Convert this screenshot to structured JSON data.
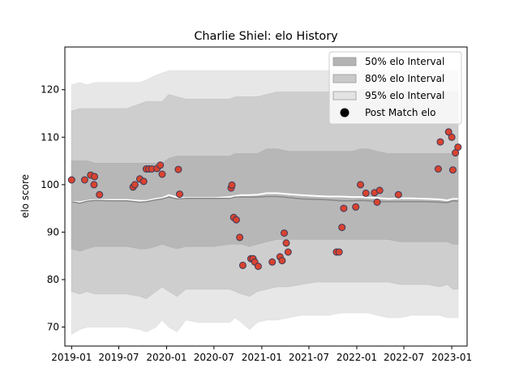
{
  "chart_data": {
    "type": "scatter",
    "title": "Charlie Shiel: elo History",
    "xlabel": "",
    "ylabel": "elo score",
    "xlim": [
      "2018-12-06",
      "2023-03-01"
    ],
    "ylim": [
      66,
      129
    ],
    "x_ticks": [
      "2019-01",
      "2019-07",
      "2020-01",
      "2020-07",
      "2021-01",
      "2021-07",
      "2022-01",
      "2022-07",
      "2023-01"
    ],
    "y_ticks": [
      70,
      80,
      90,
      100,
      110,
      120
    ],
    "grid": false,
    "legend_position": "top-right",
    "colors": {
      "band50": "#b3b3b3",
      "band80": "#c9c9c9",
      "band95": "#e3e3e3",
      "mean_line": "#888888",
      "median_line": "#ffffff",
      "point_fill": "#d9432f",
      "point_edge": "#3a3a5a"
    },
    "legend": [
      {
        "label": "50% elo Interval",
        "kind": "band50"
      },
      {
        "label": "80% elo Interval",
        "kind": "band80"
      },
      {
        "label": "95% elo Interval",
        "kind": "band95"
      },
      {
        "label": "Post Match elo",
        "kind": "point"
      }
    ],
    "band_x": [
      "2019-01-01",
      "2019-02-01",
      "2019-03-01",
      "2019-04-01",
      "2019-06-01",
      "2019-08-01",
      "2019-09-20",
      "2019-10-15",
      "2019-11-20",
      "2019-12-15",
      "2020-01-10",
      "2020-02-10",
      "2020-03-15",
      "2020-05-01",
      "2020-07-01",
      "2020-09-01",
      "2020-09-20",
      "2020-10-15",
      "2020-11-15",
      "2020-12-15",
      "2021-01-20",
      "2021-03-01",
      "2021-04-15",
      "2021-06-01",
      "2021-08-01",
      "2021-09-15",
      "2021-11-01",
      "2021-12-15",
      "2022-01-15",
      "2022-02-15",
      "2022-03-20",
      "2022-05-01",
      "2022-06-15",
      "2022-08-01",
      "2022-10-01",
      "2022-11-15",
      "2022-12-15",
      "2023-01-05",
      "2023-01-25"
    ],
    "band95_upper": [
      121,
      121.5,
      121,
      121.5,
      121.5,
      121.5,
      121.5,
      122,
      123,
      123.5,
      124,
      124,
      124,
      124,
      124,
      124,
      124,
      124,
      124,
      124,
      124,
      124,
      124,
      124,
      124,
      124,
      124,
      124,
      124,
      124,
      124,
      124,
      124,
      124,
      124,
      124,
      124,
      124,
      124
    ],
    "band95_lower": [
      68.5,
      69.5,
      70,
      70,
      70,
      70,
      69.5,
      69,
      70,
      71.5,
      70,
      69,
      71.5,
      71,
      71,
      71,
      72,
      71,
      69.5,
      71,
      71.5,
      71.5,
      72,
      72.5,
      72.5,
      72.5,
      73,
      73,
      73,
      73,
      72.5,
      72,
      72,
      72.5,
      72.5,
      72.5,
      72,
      72,
      72
    ],
    "band80_upper": [
      115.5,
      116,
      116,
      116,
      116,
      116,
      117,
      117.5,
      117.5,
      117.5,
      119,
      118.5,
      118,
      118,
      118,
      118,
      118.5,
      118.5,
      118.5,
      118.5,
      119,
      119.5,
      119.5,
      119.5,
      119.5,
      119.5,
      119.5,
      119.5,
      120,
      120,
      120,
      120,
      119.5,
      119.5,
      119.5,
      119.5,
      119.5,
      119.5,
      119.5
    ],
    "band80_lower": [
      77.5,
      77,
      77.5,
      77,
      77,
      77,
      76.5,
      76,
      77.5,
      78.5,
      77.5,
      76.5,
      78,
      78,
      78,
      78,
      77.5,
      77,
      76.5,
      77.5,
      78,
      78.5,
      78.5,
      79,
      79.5,
      79.5,
      79.5,
      79.5,
      79.5,
      79.5,
      79.5,
      79.5,
      79,
      79,
      79,
      78.5,
      79,
      78,
      78
    ],
    "band50_upper": [
      105,
      105,
      105,
      104.5,
      104.5,
      104.5,
      104.5,
      104.5,
      104.5,
      104.5,
      105.5,
      106,
      106,
      106,
      106,
      106,
      106.5,
      106.5,
      106.5,
      106.5,
      107.5,
      107.5,
      107,
      107,
      107,
      107,
      107,
      107,
      107.5,
      107.5,
      107,
      106.5,
      106.5,
      106.5,
      106.5,
      106.5,
      106.5,
      106.5,
      106.5
    ],
    "band50_lower": [
      86.5,
      86,
      86.5,
      87,
      87,
      87,
      86.5,
      86.5,
      87,
      87.5,
      87,
      86.5,
      87,
      87,
      87,
      87.5,
      87.5,
      87.5,
      87,
      87.5,
      88,
      88.5,
      88.5,
      88.5,
      88.5,
      88.5,
      88.5,
      88.5,
      88.5,
      88.5,
      88.5,
      88.5,
      88,
      88,
      88,
      88,
      88,
      87.5,
      87.5
    ],
    "mean_line": [
      96.4,
      96.1,
      96.5,
      96.7,
      96.6,
      96.6,
      96.3,
      96.4,
      96.8,
      97.0,
      97.4,
      97.0,
      97.1,
      97.1,
      97.1,
      97.1,
      97.4,
      97.4,
      97.4,
      97.4,
      97.5,
      97.5,
      97.3,
      97.0,
      96.9,
      96.8,
      96.6,
      96.6,
      96.7,
      96.6,
      96.4,
      96.4,
      96.4,
      96.4,
      96.4,
      96.3,
      96.2,
      96.6,
      96.5
    ],
    "median_line": [
      96.4,
      96.3,
      96.6,
      96.8,
      96.8,
      96.8,
      96.6,
      96.6,
      97.0,
      97.2,
      97.8,
      97.3,
      97.2,
      97.2,
      97.2,
      97.4,
      97.6,
      97.8,
      97.8,
      97.9,
      98.2,
      98.2,
      98.0,
      97.8,
      97.6,
      97.5,
      97.5,
      97.4,
      97.4,
      97.3,
      97.2,
      97.0,
      97.1,
      97.1,
      97.0,
      96.9,
      96.7,
      97.0,
      97.0
    ],
    "points": [
      {
        "x": "2019-01-01",
        "y": 101.0
      },
      {
        "x": "2019-02-20",
        "y": 101.0
      },
      {
        "x": "2019-03-15",
        "y": 102.0
      },
      {
        "x": "2019-03-28",
        "y": 100.0
      },
      {
        "x": "2019-03-30",
        "y": 101.7
      },
      {
        "x": "2019-04-18",
        "y": 97.9
      },
      {
        "x": "2019-08-25",
        "y": 99.5
      },
      {
        "x": "2019-09-01",
        "y": 100.0
      },
      {
        "x": "2019-09-20",
        "y": 101.2
      },
      {
        "x": "2019-10-05",
        "y": 100.7
      },
      {
        "x": "2019-10-15",
        "y": 103.3
      },
      {
        "x": "2019-10-25",
        "y": 103.3
      },
      {
        "x": "2019-11-05",
        "y": 103.3
      },
      {
        "x": "2019-11-25",
        "y": 103.4
      },
      {
        "x": "2019-12-08",
        "y": 104.1
      },
      {
        "x": "2019-12-15",
        "y": 102.2
      },
      {
        "x": "2020-02-15",
        "y": 103.2
      },
      {
        "x": "2020-02-20",
        "y": 98.0
      },
      {
        "x": "2020-09-05",
        "y": 99.3
      },
      {
        "x": "2020-09-08",
        "y": 99.9
      },
      {
        "x": "2020-09-15",
        "y": 93.1
      },
      {
        "x": "2020-09-25",
        "y": 92.6
      },
      {
        "x": "2020-10-08",
        "y": 88.9
      },
      {
        "x": "2020-10-20",
        "y": 83.0
      },
      {
        "x": "2020-11-20",
        "y": 84.4
      },
      {
        "x": "2020-11-28",
        "y": 84.4
      },
      {
        "x": "2020-12-05",
        "y": 83.7
      },
      {
        "x": "2020-12-18",
        "y": 82.8
      },
      {
        "x": "2021-02-10",
        "y": 83.7
      },
      {
        "x": "2021-03-12",
        "y": 84.8
      },
      {
        "x": "2021-03-20",
        "y": 84.0
      },
      {
        "x": "2021-03-28",
        "y": 89.8
      },
      {
        "x": "2021-04-05",
        "y": 87.7
      },
      {
        "x": "2021-04-12",
        "y": 85.8
      },
      {
        "x": "2021-10-15",
        "y": 85.8
      },
      {
        "x": "2021-10-25",
        "y": 85.8
      },
      {
        "x": "2021-11-05",
        "y": 91.0
      },
      {
        "x": "2021-11-12",
        "y": 95.0
      },
      {
        "x": "2021-12-28",
        "y": 95.3
      },
      {
        "x": "2022-01-15",
        "y": 100.0
      },
      {
        "x": "2022-02-05",
        "y": 98.2
      },
      {
        "x": "2022-03-10",
        "y": 98.3
      },
      {
        "x": "2022-03-20",
        "y": 96.3
      },
      {
        "x": "2022-03-30",
        "y": 98.8
      },
      {
        "x": "2022-06-10",
        "y": 97.9
      },
      {
        "x": "2022-11-10",
        "y": 103.3
      },
      {
        "x": "2022-11-18",
        "y": 109.0
      },
      {
        "x": "2022-12-20",
        "y": 111.1
      },
      {
        "x": "2023-01-01",
        "y": 110.0
      },
      {
        "x": "2023-01-05",
        "y": 103.1
      },
      {
        "x": "2023-01-15",
        "y": 106.7
      },
      {
        "x": "2023-01-25",
        "y": 107.9
      }
    ]
  }
}
